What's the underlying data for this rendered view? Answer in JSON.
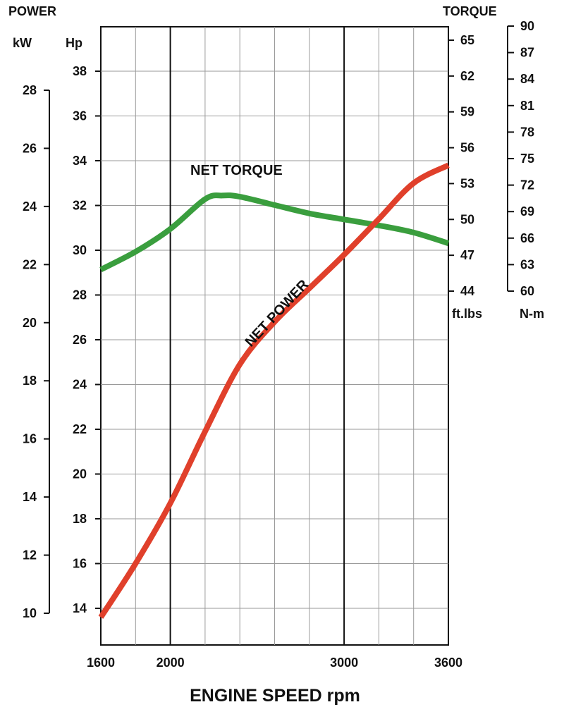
{
  "chart_data": {
    "type": "line",
    "title_left": "POWER",
    "title_right": "TORQUE",
    "xlabel": "ENGINE SPEED rpm",
    "xlim": [
      1600,
      3600
    ],
    "x_ticks": [
      1600,
      2000,
      3000,
      3600
    ],
    "x_major_lines": [
      2000,
      3000
    ],
    "x_minor_lines": [
      1800,
      2200,
      2400,
      2600,
      2800,
      3200,
      3400
    ],
    "axes": {
      "hp": {
        "unit": "Hp",
        "range": [
          12.5,
          40.5
        ],
        "ticks": [
          14,
          16,
          18,
          20,
          22,
          24,
          26,
          28,
          30,
          32,
          34,
          36,
          38
        ]
      },
      "kw": {
        "unit": "kW",
        "range": [
          10,
          28
        ],
        "ticks": [
          10,
          12,
          14,
          16,
          18,
          20,
          22,
          24,
          26,
          28
        ]
      },
      "ftlbs": {
        "unit": "ft.lbs",
        "range": [
          44,
          66
        ],
        "ticks": [
          44,
          47,
          50,
          53,
          56,
          59,
          62,
          65
        ]
      },
      "nm": {
        "unit": "N-m",
        "range": [
          60,
          90
        ],
        "ticks": [
          60,
          63,
          66,
          69,
          72,
          75,
          78,
          81,
          84,
          87,
          90
        ]
      }
    },
    "grid": true,
    "series": [
      {
        "name": "NET TORQUE",
        "color": "#3a9e3e",
        "axis": "ftlbs",
        "x": [
          1600,
          1800,
          2000,
          2200,
          2300,
          2400,
          2600,
          2800,
          3000,
          3200,
          3400,
          3600
        ],
        "y": [
          45.8,
          47.3,
          49.2,
          51.7,
          52.0,
          51.9,
          51.2,
          50.5,
          50.0,
          49.5,
          48.9,
          48.0
        ]
      },
      {
        "name": "NET POWER",
        "color": "#e0402b",
        "axis": "hp",
        "x": [
          1600,
          1800,
          2000,
          2200,
          2400,
          2600,
          2800,
          3000,
          3200,
          3400,
          3600
        ],
        "y": [
          13.6,
          16.0,
          18.7,
          21.9,
          24.9,
          26.8,
          28.3,
          29.8,
          31.4,
          33.0,
          33.8
        ]
      }
    ],
    "annotations": [
      "NET TORQUE",
      "NET POWER"
    ]
  }
}
